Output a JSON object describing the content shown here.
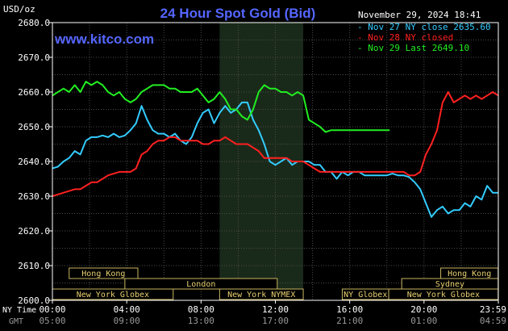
{
  "chart_data": {
    "type": "line",
    "title": "24 Hour Spot Gold (Bid)",
    "ylabel": "USD/oz",
    "site": "www.kitco.com",
    "timestamp": "November 29, 2024 18:41",
    "ylim": [
      2600,
      2680
    ],
    "xlim": [
      0,
      24
    ],
    "yticks": [
      "2680.0",
      "2670.0",
      "2660.0",
      "2650.0",
      "2640.0",
      "2630.0",
      "2620.0",
      "2610.0",
      "2600.0"
    ],
    "ytick_values": [
      2680,
      2670,
      2660,
      2650,
      2640,
      2630,
      2620,
      2610,
      2600
    ],
    "x_axis_name_ny": "NY Time",
    "x_axis_name_gmt": "GMT",
    "xticks_ny": [
      "00:00",
      "04:00",
      "08:00",
      "12:00",
      "16:00",
      "20:00",
      "23:59"
    ],
    "xticks_gmt": [
      "05:00",
      "09:00",
      "13:00",
      "17:00",
      "21:00",
      "01:00",
      "04:59"
    ],
    "xtick_hours": [
      0,
      4,
      8,
      12,
      16,
      20,
      24
    ],
    "shaded_region_hours": [
      9,
      13.5
    ],
    "grid": true,
    "legend_position": "top-right",
    "series": [
      {
        "name": "Nov 27 NY close 2635.60",
        "color": "#33ccff",
        "x": [
          0,
          0.3,
          0.6,
          0.9,
          1.2,
          1.5,
          1.8,
          2.1,
          2.4,
          2.7,
          3.0,
          3.3,
          3.6,
          3.9,
          4.2,
          4.5,
          4.8,
          5.1,
          5.4,
          5.7,
          6.0,
          6.3,
          6.6,
          6.9,
          7.2,
          7.5,
          7.8,
          8.1,
          8.4,
          8.7,
          9.0,
          9.3,
          9.6,
          9.9,
          10.2,
          10.5,
          10.8,
          11.1,
          11.4,
          11.7,
          12.0,
          12.3,
          12.6,
          12.9,
          13.2,
          13.5,
          13.8,
          14.1,
          14.4,
          14.7,
          15.0,
          15.3,
          15.6,
          15.9,
          16.2,
          16.5,
          16.8,
          17.1,
          17.4,
          17.7,
          18.0,
          18.3,
          18.6,
          18.9,
          19.2,
          19.5,
          19.8,
          20.1,
          20.4,
          20.7,
          21.0,
          21.3,
          21.6,
          21.9,
          22.2,
          22.5,
          22.8,
          23.1,
          23.4,
          23.7,
          23.99
        ],
        "values": [
          2638,
          2638.5,
          2640,
          2641,
          2643,
          2642,
          2646,
          2647,
          2647,
          2647.5,
          2647,
          2648,
          2647,
          2647.5,
          2649,
          2651,
          2656,
          2652,
          2649,
          2648,
          2648,
          2647,
          2648,
          2646,
          2645,
          2647,
          2651,
          2654,
          2655,
          2651,
          2654,
          2656,
          2654,
          2655,
          2657,
          2657,
          2652,
          2649,
          2645,
          2640,
          2639,
          2640,
          2641,
          2639,
          2640,
          2640,
          2640,
          2639,
          2639,
          2637,
          2637,
          2635,
          2637,
          2636,
          2637,
          2637,
          2636,
          2636,
          2636,
          2636,
          2636,
          2636.5,
          2636,
          2636,
          2635.5,
          2634,
          2632,
          2628,
          2624,
          2626,
          2627,
          2625,
          2626,
          2626,
          2628,
          2627,
          2630,
          2629,
          2633,
          2631,
          2631
        ]
      },
      {
        "name": "Nov 28 NY closed",
        "color": "#ff2020",
        "x": [
          0,
          0.3,
          0.6,
          0.9,
          1.2,
          1.5,
          1.8,
          2.1,
          2.4,
          2.7,
          3.0,
          3.3,
          3.6,
          3.9,
          4.2,
          4.5,
          4.8,
          5.1,
          5.4,
          5.7,
          6.0,
          6.3,
          6.6,
          6.9,
          7.2,
          7.5,
          7.8,
          8.1,
          8.4,
          8.7,
          9.0,
          9.3,
          9.6,
          9.9,
          10.2,
          10.5,
          10.8,
          11.1,
          11.4,
          11.7,
          12.0,
          12.3,
          12.6,
          12.9,
          13.2,
          13.5,
          13.8,
          14.1,
          14.4,
          14.7,
          15.0,
          15.3,
          15.6,
          15.9,
          16.2,
          16.5,
          16.8,
          17.1,
          17.4,
          17.7,
          18.0,
          18.3,
          18.6,
          18.9,
          19.2,
          19.5,
          19.8,
          20.1,
          20.4,
          20.7,
          21.0,
          21.3,
          21.6,
          21.9,
          22.2,
          22.5,
          22.8,
          23.1,
          23.4,
          23.7,
          23.99
        ],
        "values": [
          2630,
          2630.5,
          2631,
          2631.5,
          2632,
          2632,
          2633,
          2634,
          2634,
          2635,
          2636,
          2636.5,
          2637,
          2637,
          2637,
          2638,
          2642,
          2643,
          2645,
          2646,
          2646,
          2647,
          2647,
          2646,
          2646,
          2646,
          2646,
          2645,
          2645,
          2646,
          2646,
          2647,
          2646,
          2645,
          2645,
          2645,
          2644,
          2643,
          2641,
          2641,
          2641,
          2641,
          2641,
          2640,
          2640,
          2640,
          2639,
          2638,
          2637,
          2637,
          2637,
          2637,
          2637,
          2637,
          2637,
          2637,
          2637,
          2637,
          2637,
          2637,
          2637,
          2637,
          2637,
          2637,
          2636,
          2636,
          2637,
          2642,
          2645,
          2649,
          2657,
          2660,
          2657,
          2658,
          2659,
          2658,
          2659,
          2658,
          2659,
          2660,
          2659
        ]
      },
      {
        "name": "Nov 29 Last 2649.10",
        "color": "#22ee22",
        "x": [
          0,
          0.3,
          0.6,
          0.9,
          1.2,
          1.5,
          1.8,
          2.1,
          2.4,
          2.7,
          3.0,
          3.3,
          3.6,
          3.9,
          4.2,
          4.5,
          4.8,
          5.1,
          5.4,
          5.7,
          6.0,
          6.3,
          6.6,
          6.9,
          7.2,
          7.5,
          7.8,
          8.1,
          8.4,
          8.7,
          9.0,
          9.3,
          9.6,
          9.9,
          10.2,
          10.5,
          10.8,
          11.1,
          11.4,
          11.7,
          12.0,
          12.3,
          12.6,
          12.9,
          13.2,
          13.5,
          13.8,
          14.1,
          14.4,
          14.7,
          15.0,
          15.6,
          16.2,
          16.8,
          17.4,
          18.0,
          18.15
        ],
        "values": [
          2659,
          2660,
          2661,
          2660,
          2662,
          2660,
          2663,
          2662,
          2663,
          2662,
          2660,
          2659,
          2660,
          2658,
          2657,
          2658,
          2660,
          2661,
          2662,
          2662,
          2662,
          2661,
          2661,
          2660,
          2660,
          2660,
          2661,
          2659,
          2657,
          2658,
          2660,
          2658,
          2655,
          2655,
          2653,
          2652,
          2655,
          2660,
          2662,
          2661,
          2661,
          2660,
          2660,
          2659,
          2660,
          2659,
          2652,
          2651,
          2650,
          2648.5,
          2649,
          2649,
          2649,
          2649,
          2649,
          2649,
          2649
        ]
      }
    ],
    "sessions": [
      {
        "name": "Hong Kong",
        "start": 0.9,
        "end": 4.6,
        "row": 0
      },
      {
        "name": "London",
        "start": 3.9,
        "end": 12.1,
        "row": 1
      },
      {
        "name": "New York Globex",
        "start": 0,
        "end": 6.5,
        "row": 2
      },
      {
        "name": "New York NYMEX",
        "start": 9.0,
        "end": 13.5,
        "row": 2
      },
      {
        "name": "NY Globex",
        "start": 15.6,
        "end": 18.1,
        "row": 2
      },
      {
        "name": "Hong Kong",
        "start": 20.9,
        "end": 23.99,
        "row": 0
      },
      {
        "name": "Sydney",
        "start": 18.8,
        "end": 23.99,
        "row": 1
      },
      {
        "name": "New York Globex",
        "start": 18.1,
        "end": 23.99,
        "row": 2
      }
    ]
  }
}
